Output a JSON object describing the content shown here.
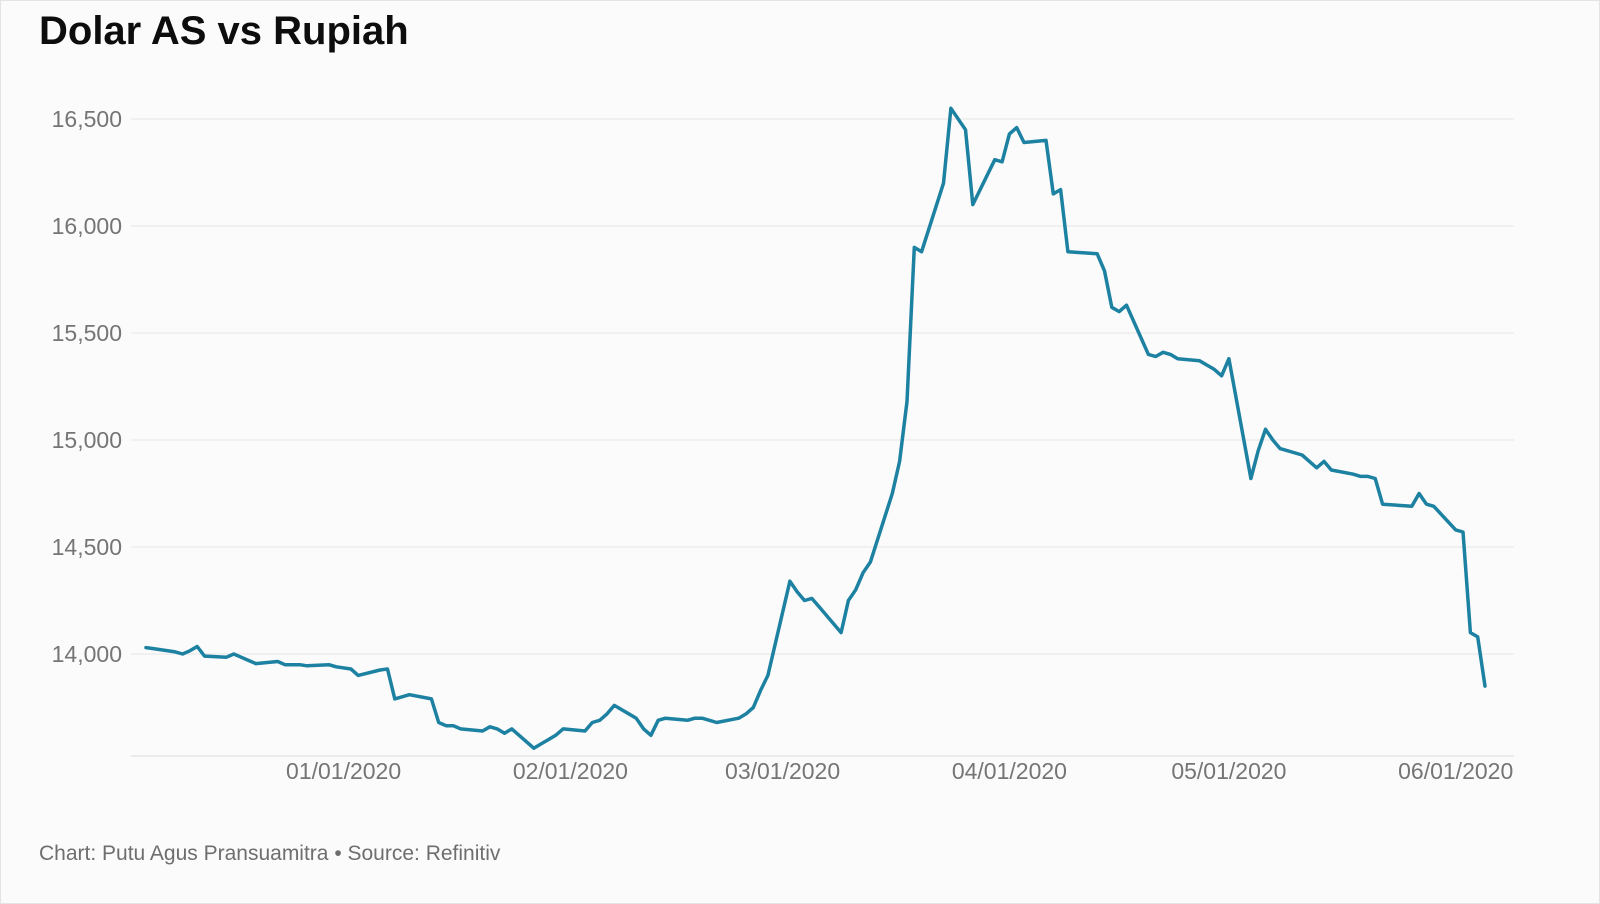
{
  "caption": "Chart: Putu Agus Pransuamitra • Source: Refinitiv",
  "colors": {
    "line": "#1d81a2",
    "grid": "#e4e4e4",
    "baseline": "#d9d9d9",
    "axis_text": "#757575",
    "title_text": "#0d0d0d",
    "background": "#fbfbfb"
  },
  "chart_data": {
    "type": "line",
    "title": "Dolar AS vs Rupiah",
    "xlabel": "",
    "ylabel": "",
    "legend": "none",
    "grid": "horizontal",
    "ylim": [
      13500,
      16600
    ],
    "yticks": [
      {
        "value": 14000,
        "label": "14,000"
      },
      {
        "value": 14500,
        "label": "14,500"
      },
      {
        "value": 15000,
        "label": "15,000"
      },
      {
        "value": 15500,
        "label": "15,500"
      },
      {
        "value": 16000,
        "label": "16,000"
      },
      {
        "value": 16500,
        "label": "16,500"
      }
    ],
    "xticks": [
      {
        "date": "2020-01-01",
        "label": "01/01/2020"
      },
      {
        "date": "2020-02-01",
        "label": "02/01/2020"
      },
      {
        "date": "2020-03-01",
        "label": "03/01/2020"
      },
      {
        "date": "2020-04-01",
        "label": "04/01/2020"
      },
      {
        "date": "2020-05-01",
        "label": "05/01/2020"
      },
      {
        "date": "2020-06-01",
        "label": "06/01/2020"
      }
    ],
    "points": [
      [
        "2019-12-05",
        14030
      ],
      [
        "2019-12-06",
        14025
      ],
      [
        "2019-12-09",
        14010
      ],
      [
        "2019-12-10",
        14000
      ],
      [
        "2019-12-11",
        14015
      ],
      [
        "2019-12-12",
        14035
      ],
      [
        "2019-12-13",
        13990
      ],
      [
        "2019-12-16",
        13985
      ],
      [
        "2019-12-17",
        14000
      ],
      [
        "2019-12-18",
        13985
      ],
      [
        "2019-12-19",
        13970
      ],
      [
        "2019-12-20",
        13955
      ],
      [
        "2019-12-23",
        13965
      ],
      [
        "2019-12-24",
        13950
      ],
      [
        "2019-12-26",
        13950
      ],
      [
        "2019-12-27",
        13945
      ],
      [
        "2019-12-30",
        13950
      ],
      [
        "2019-12-31",
        13940
      ],
      [
        "2020-01-02",
        13930
      ],
      [
        "2020-01-03",
        13900
      ],
      [
        "2020-01-06",
        13925
      ],
      [
        "2020-01-07",
        13930
      ],
      [
        "2020-01-08",
        13790
      ],
      [
        "2020-01-09",
        13800
      ],
      [
        "2020-01-10",
        13810
      ],
      [
        "2020-01-13",
        13790
      ],
      [
        "2020-01-14",
        13680
      ],
      [
        "2020-01-15",
        13665
      ],
      [
        "2020-01-16",
        13665
      ],
      [
        "2020-01-17",
        13650
      ],
      [
        "2020-01-20",
        13640
      ],
      [
        "2020-01-21",
        13660
      ],
      [
        "2020-01-22",
        13650
      ],
      [
        "2020-01-23",
        13630
      ],
      [
        "2020-01-24",
        13650
      ],
      [
        "2020-01-27",
        13560
      ],
      [
        "2020-01-28",
        13580
      ],
      [
        "2020-01-29",
        13600
      ],
      [
        "2020-01-30",
        13620
      ],
      [
        "2020-01-31",
        13650
      ],
      [
        "2020-02-03",
        13640
      ],
      [
        "2020-02-04",
        13680
      ],
      [
        "2020-02-05",
        13690
      ],
      [
        "2020-02-06",
        13720
      ],
      [
        "2020-02-07",
        13760
      ],
      [
        "2020-02-10",
        13700
      ],
      [
        "2020-02-11",
        13650
      ],
      [
        "2020-02-12",
        13620
      ],
      [
        "2020-02-13",
        13690
      ],
      [
        "2020-02-14",
        13700
      ],
      [
        "2020-02-17",
        13690
      ],
      [
        "2020-02-18",
        13700
      ],
      [
        "2020-02-19",
        13700
      ],
      [
        "2020-02-20",
        13690
      ],
      [
        "2020-02-21",
        13680
      ],
      [
        "2020-02-24",
        13700
      ],
      [
        "2020-02-25",
        13720
      ],
      [
        "2020-02-26",
        13750
      ],
      [
        "2020-02-27",
        13830
      ],
      [
        "2020-02-28",
        13900
      ],
      [
        "2020-03-02",
        14340
      ],
      [
        "2020-03-03",
        14290
      ],
      [
        "2020-03-04",
        14250
      ],
      [
        "2020-03-05",
        14260
      ],
      [
        "2020-03-06",
        14220
      ],
      [
        "2020-03-09",
        14100
      ],
      [
        "2020-03-10",
        14250
      ],
      [
        "2020-03-11",
        14300
      ],
      [
        "2020-03-12",
        14380
      ],
      [
        "2020-03-13",
        14430
      ],
      [
        "2020-03-16",
        14750
      ],
      [
        "2020-03-17",
        14900
      ],
      [
        "2020-03-18",
        15180
      ],
      [
        "2020-03-19",
        15900
      ],
      [
        "2020-03-20",
        15880
      ],
      [
        "2020-03-23",
        16200
      ],
      [
        "2020-03-24",
        16550
      ],
      [
        "2020-03-26",
        16450
      ],
      [
        "2020-03-27",
        16100
      ],
      [
        "2020-03-30",
        16310
      ],
      [
        "2020-03-31",
        16300
      ],
      [
        "2020-04-01",
        16430
      ],
      [
        "2020-04-02",
        16460
      ],
      [
        "2020-04-03",
        16390
      ],
      [
        "2020-04-06",
        16400
      ],
      [
        "2020-04-07",
        16150
      ],
      [
        "2020-04-08",
        16170
      ],
      [
        "2020-04-09",
        15880
      ],
      [
        "2020-04-13",
        15870
      ],
      [
        "2020-04-14",
        15790
      ],
      [
        "2020-04-15",
        15620
      ],
      [
        "2020-04-16",
        15600
      ],
      [
        "2020-04-17",
        15630
      ],
      [
        "2020-04-20",
        15400
      ],
      [
        "2020-04-21",
        15390
      ],
      [
        "2020-04-22",
        15410
      ],
      [
        "2020-04-23",
        15400
      ],
      [
        "2020-04-24",
        15380
      ],
      [
        "2020-04-27",
        15370
      ],
      [
        "2020-04-28",
        15350
      ],
      [
        "2020-04-29",
        15330
      ],
      [
        "2020-04-30",
        15300
      ],
      [
        "2020-05-01",
        15380
      ],
      [
        "2020-05-04",
        14820
      ],
      [
        "2020-05-05",
        14950
      ],
      [
        "2020-05-06",
        15050
      ],
      [
        "2020-05-07",
        15000
      ],
      [
        "2020-05-08",
        14960
      ],
      [
        "2020-05-11",
        14930
      ],
      [
        "2020-05-12",
        14900
      ],
      [
        "2020-05-13",
        14870
      ],
      [
        "2020-05-14",
        14900
      ],
      [
        "2020-05-15",
        14860
      ],
      [
        "2020-05-18",
        14840
      ],
      [
        "2020-05-19",
        14830
      ],
      [
        "2020-05-20",
        14830
      ],
      [
        "2020-05-21",
        14820
      ],
      [
        "2020-05-22",
        14700
      ],
      [
        "2020-05-26",
        14690
      ],
      [
        "2020-05-27",
        14750
      ],
      [
        "2020-05-28",
        14700
      ],
      [
        "2020-05-29",
        14690
      ],
      [
        "2020-06-01",
        14580
      ],
      [
        "2020-06-02",
        14570
      ],
      [
        "2020-06-03",
        14100
      ],
      [
        "2020-06-04",
        14080
      ],
      [
        "2020-06-05",
        13850
      ]
    ]
  }
}
